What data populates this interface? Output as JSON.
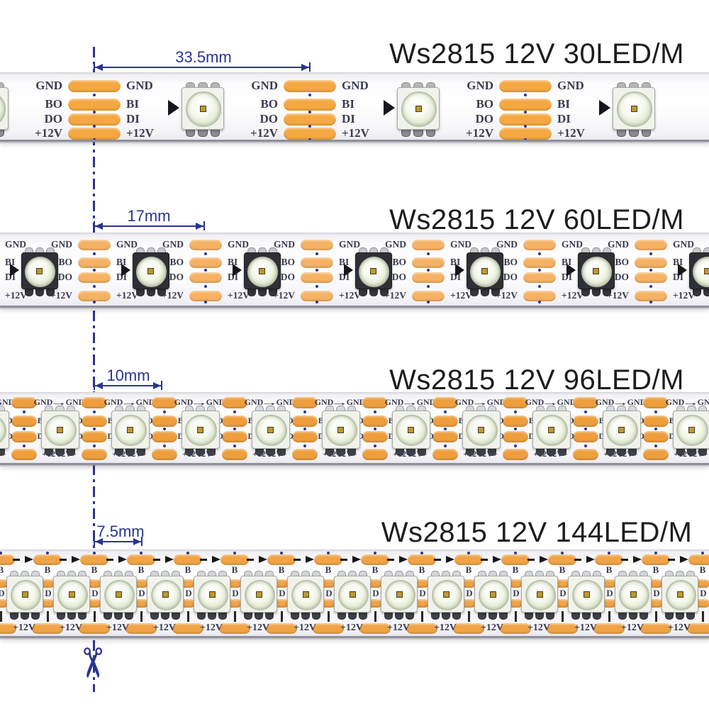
{
  "colors": {
    "annotation_navy": "#2b3590",
    "title_text": "#1d1d1f",
    "pcb_label": "#3b3b50",
    "pad_orange_30": "#f5a841",
    "pad_orange_60": "#f6b264",
    "pad_orange_96": "#ee9e3d",
    "pad_orange_144": "#f0a447",
    "led_body_dark": "#2f2f35",
    "led_body_light": "#f2f2ec",
    "lens_green_edge": "#c9d6b8",
    "die_gold": "#bd9733",
    "arrow_black": "#17171b"
  },
  "strips": [
    {
      "title": "Ws2815 12V 30LED/M",
      "dimension": "33.5mm",
      "pad_labels_left": [
        "GND",
        "BO",
        "DO",
        "+12V"
      ],
      "pad_labels_right": [
        "GND",
        "BI",
        "DI",
        "+12V"
      ]
    },
    {
      "title": "Ws2815 12V 60LED/M",
      "dimension": "17mm",
      "pad_labels_left": [
        "GND",
        "BO",
        "DO",
        "+12V"
      ],
      "pad_labels_right": [
        "GND",
        "BI",
        "DI",
        "+12V"
      ]
    },
    {
      "title": "Ws2815 12V 96LED/M",
      "dimension": "10mm",
      "top_labels": [
        "GND",
        "GND"
      ],
      "flow_arrow": "→",
      "side_labels_left": [
        "BO",
        "DO"
      ],
      "side_labels_right": [
        "BI",
        "DI"
      ],
      "bottom_labels": [
        "12V+",
        "+12V"
      ]
    },
    {
      "title": "Ws2815 12V 144LED/M",
      "dimension": "7.5mm",
      "flow_dash": "–",
      "flow_arrow": "→",
      "data_labels": [
        "B",
        "D"
      ],
      "power_label": "+12V"
    }
  ],
  "cut_line": {
    "scissors_icon": "✂"
  }
}
